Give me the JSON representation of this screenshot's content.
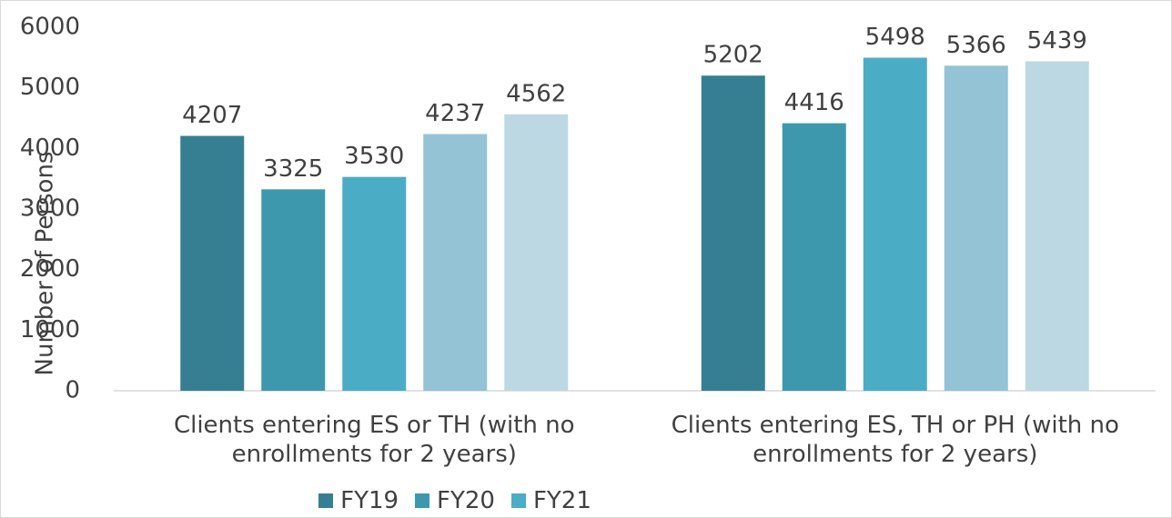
{
  "chart_data": {
    "type": "bar",
    "y_label": "Number of Persons",
    "categories": [
      "Clients entering ES or TH (with no enrollments for 2 years)",
      "Clients entering ES, TH or PH (with no enrollments for 2 years)"
    ],
    "series": [
      {
        "name": "FY19",
        "color": "#367f93",
        "values": [
          4207,
          5202
        ]
      },
      {
        "name": "FY20",
        "color": "#3e98ad",
        "values": [
          3325,
          4416
        ]
      },
      {
        "name": "FY21",
        "color": "#4bacc6",
        "values": [
          3530,
          5498
        ]
      },
      {
        "color": "#93c3d5",
        "values": [
          4237,
          5366
        ]
      },
      {
        "color": "#bcd8e3",
        "values": [
          4562,
          5439
        ]
      }
    ],
    "ylim": [
      0,
      6000
    ],
    "yticks": [
      0,
      1000,
      2000,
      3000,
      4000,
      5000,
      6000
    ],
    "grid": false
  }
}
